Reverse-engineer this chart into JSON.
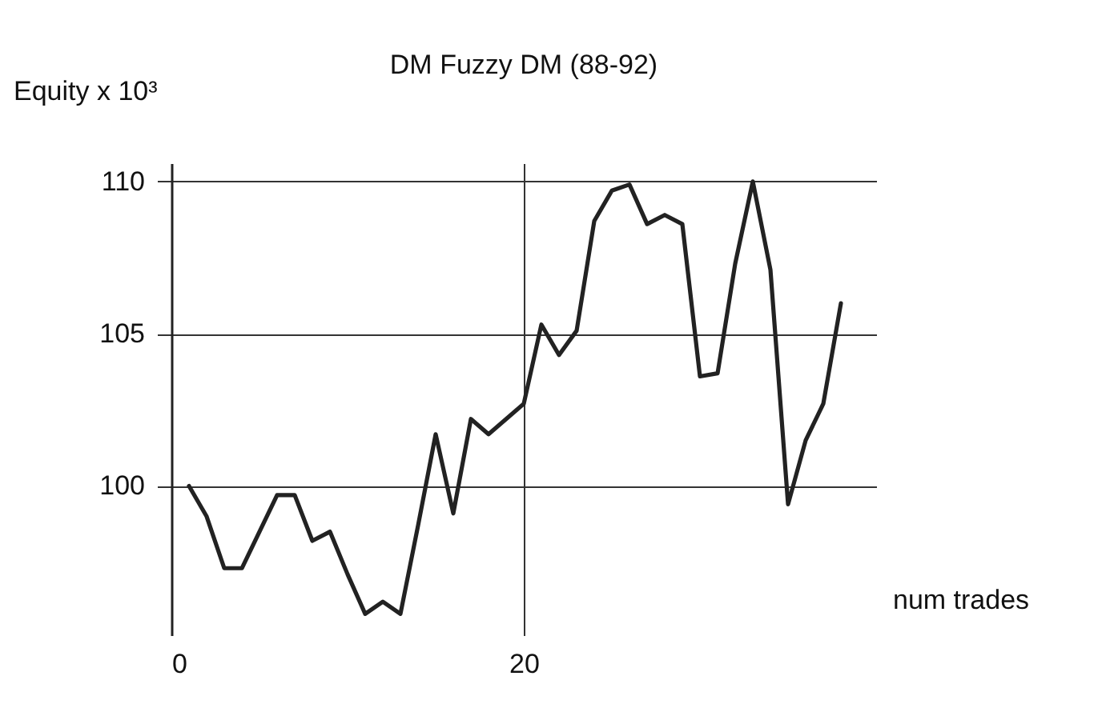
{
  "chart_data": {
    "type": "line",
    "title": "DM Fuzzy DM (88-92)",
    "ylabel": "Equity x 10³",
    "xlabel": "num trades",
    "x": [
      1,
      2,
      3,
      4,
      5,
      6,
      7,
      8,
      9,
      10,
      11,
      12,
      13,
      14,
      15,
      16,
      17,
      18,
      19,
      20,
      21,
      22,
      23,
      24,
      25,
      26,
      27,
      28,
      29,
      30,
      31,
      32,
      33,
      34,
      35,
      36,
      37,
      38
    ],
    "series": [
      {
        "color": "#222222",
        "values": [
          100,
          99.0,
          97.3,
          97.3,
          98.5,
          99.7,
          99.7,
          98.2,
          98.5,
          97.1,
          95.8,
          96.2,
          95.8,
          98.7,
          101.7,
          99.1,
          102.2,
          101.7,
          102.2,
          102.7,
          105.3,
          104.3,
          105.1,
          108.7,
          109.7,
          109.9,
          108.6,
          108.9,
          108.6,
          103.6,
          103.7,
          107.3,
          110.0,
          107.1,
          99.4,
          101.5,
          102.7,
          106.0
        ]
      }
    ],
    "xlim": [
      0,
      40
    ],
    "ylim": [
      95.1,
      110.6
    ],
    "xticks": [
      0,
      20
    ],
    "yticks": [
      100,
      105,
      110
    ],
    "grid": true,
    "marker": "none",
    "line_style": "solid"
  }
}
